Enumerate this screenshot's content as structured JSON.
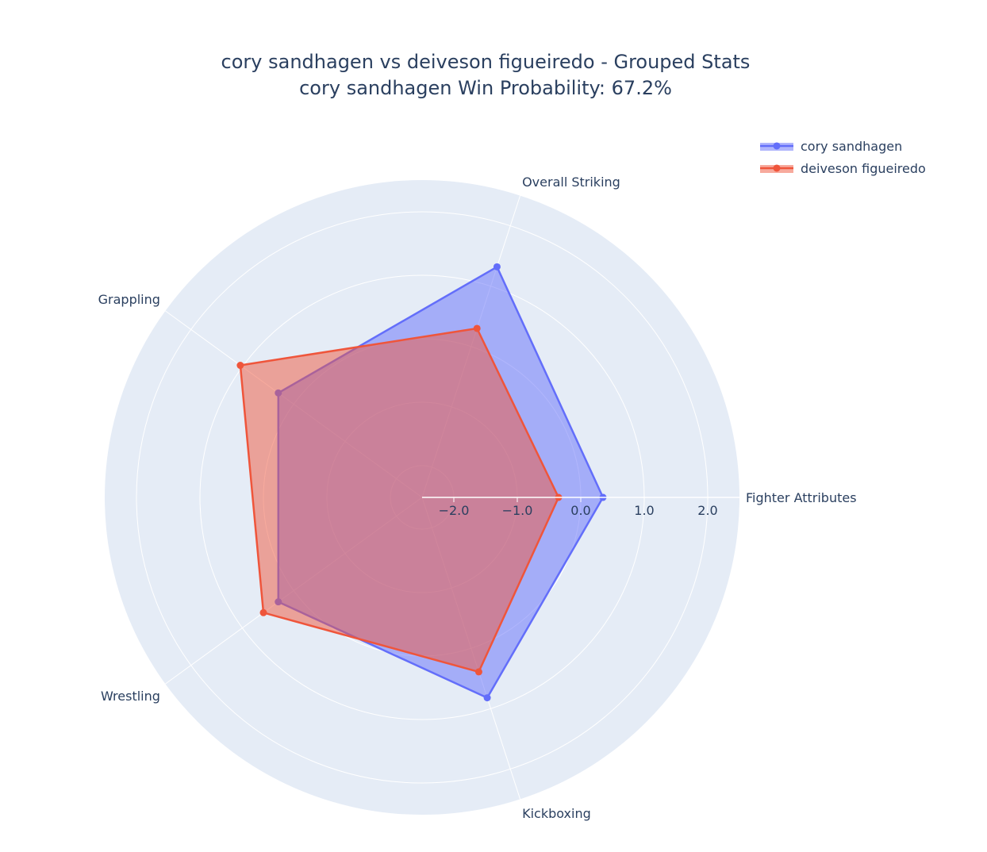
{
  "chart_data": {
    "type": "radar",
    "title": "cory sandhagen vs deiveson figueiredo - Grouped Stats",
    "subtitle": "cory sandhagen Win Probability: 67.2%",
    "categories": [
      "Fighter Attributes",
      "Overall Striking",
      "Grappling",
      "Wrestling",
      "Kickboxing"
    ],
    "radial_ticks": [
      "−2.0",
      "−1.0",
      "0.0",
      "1.0",
      "2.0"
    ],
    "radial_tick_values": [
      -2.0,
      -1.0,
      0.0,
      1.0,
      2.0
    ],
    "radial_range": [
      -2.5,
      2.5
    ],
    "grid": true,
    "legend_position": "top-right",
    "series": [
      {
        "name": "cory sandhagen",
        "color": "#636efa",
        "values": {
          "Fighter Attributes": 0.35,
          "Overall Striking": 1.32,
          "Grappling": 0.3,
          "Wrestling": 0.3,
          "Kickboxing": 0.82
        }
      },
      {
        "name": "deiveson figueiredo",
        "color": "#ef553b",
        "values": {
          "Fighter Attributes": -0.35,
          "Overall Striking": 0.3,
          "Grappling": 1.04,
          "Wrestling": 0.59,
          "Kickboxing": 0.39
        }
      }
    ]
  }
}
